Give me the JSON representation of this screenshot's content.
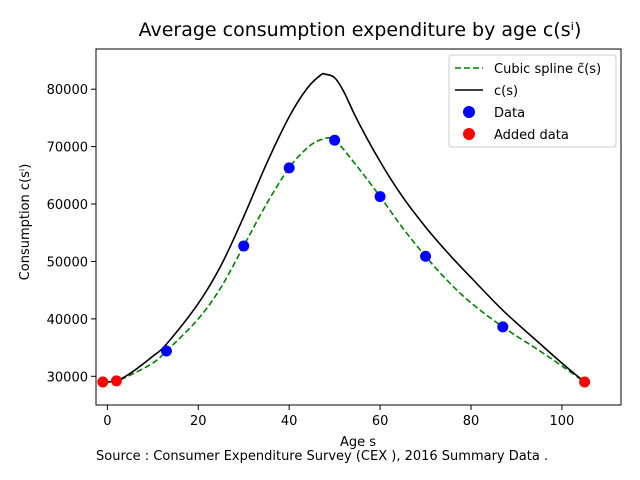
{
  "chart_data": {
    "type": "line",
    "title": "Average consumption expenditure by age c(sⁱ)",
    "xlabel": "Age s",
    "ylabel": "Consumption c(sⁱ)",
    "source_note": "Source : Consumer Expenditure Survey (CEX ), 2016 Summary Data .",
    "xlim": [
      -2.5,
      113
    ],
    "ylim": [
      25000,
      87000
    ],
    "xticks": [
      0,
      20,
      40,
      60,
      80,
      100
    ],
    "yticks": [
      30000,
      40000,
      50000,
      60000,
      70000,
      80000
    ],
    "grid": false,
    "legend_position": "top-right",
    "series": [
      {
        "name": "Cubic spline c̃(s)",
        "style": "dashed-line",
        "color": "#008000",
        "x": [
          -1,
          2,
          5,
          10,
          13,
          20,
          25,
          30,
          35,
          40,
          44,
          47,
          50,
          55,
          60,
          65,
          70,
          75,
          80,
          87,
          95,
          100,
          105
        ],
        "y": [
          29000,
          29200,
          30200,
          32300,
          34400,
          40000,
          45500,
          52700,
          60000,
          66300,
          69800,
          71200,
          71100,
          66500,
          61300,
          55800,
          50900,
          46500,
          42800,
          38600,
          34500,
          31800,
          29000
        ]
      },
      {
        "name": "c(s)",
        "style": "solid-line",
        "color": "#000000",
        "x": [
          -1,
          2,
          5,
          10,
          13,
          20,
          25,
          30,
          35,
          40,
          44,
          47,
          48,
          50,
          52,
          55,
          60,
          65,
          70,
          75,
          80,
          87,
          95,
          100,
          105
        ],
        "y": [
          29000,
          29200,
          30500,
          33500,
          35600,
          42700,
          49300,
          57800,
          67000,
          75200,
          80200,
          82500,
          82600,
          82000,
          79600,
          74600,
          67400,
          61200,
          56000,
          51400,
          47200,
          41500,
          35800,
          32300,
          29000
        ]
      },
      {
        "name": "Data",
        "style": "markers",
        "color": "#0000ff",
        "x": [
          13,
          30,
          40,
          50,
          60,
          70,
          87
        ],
        "y": [
          34400,
          52700,
          66300,
          71100,
          61300,
          50900,
          38600
        ]
      },
      {
        "name": "Added data",
        "style": "markers",
        "color": "#ff0000",
        "x": [
          -1,
          2,
          105
        ],
        "y": [
          29000,
          29200,
          29000
        ]
      }
    ]
  }
}
